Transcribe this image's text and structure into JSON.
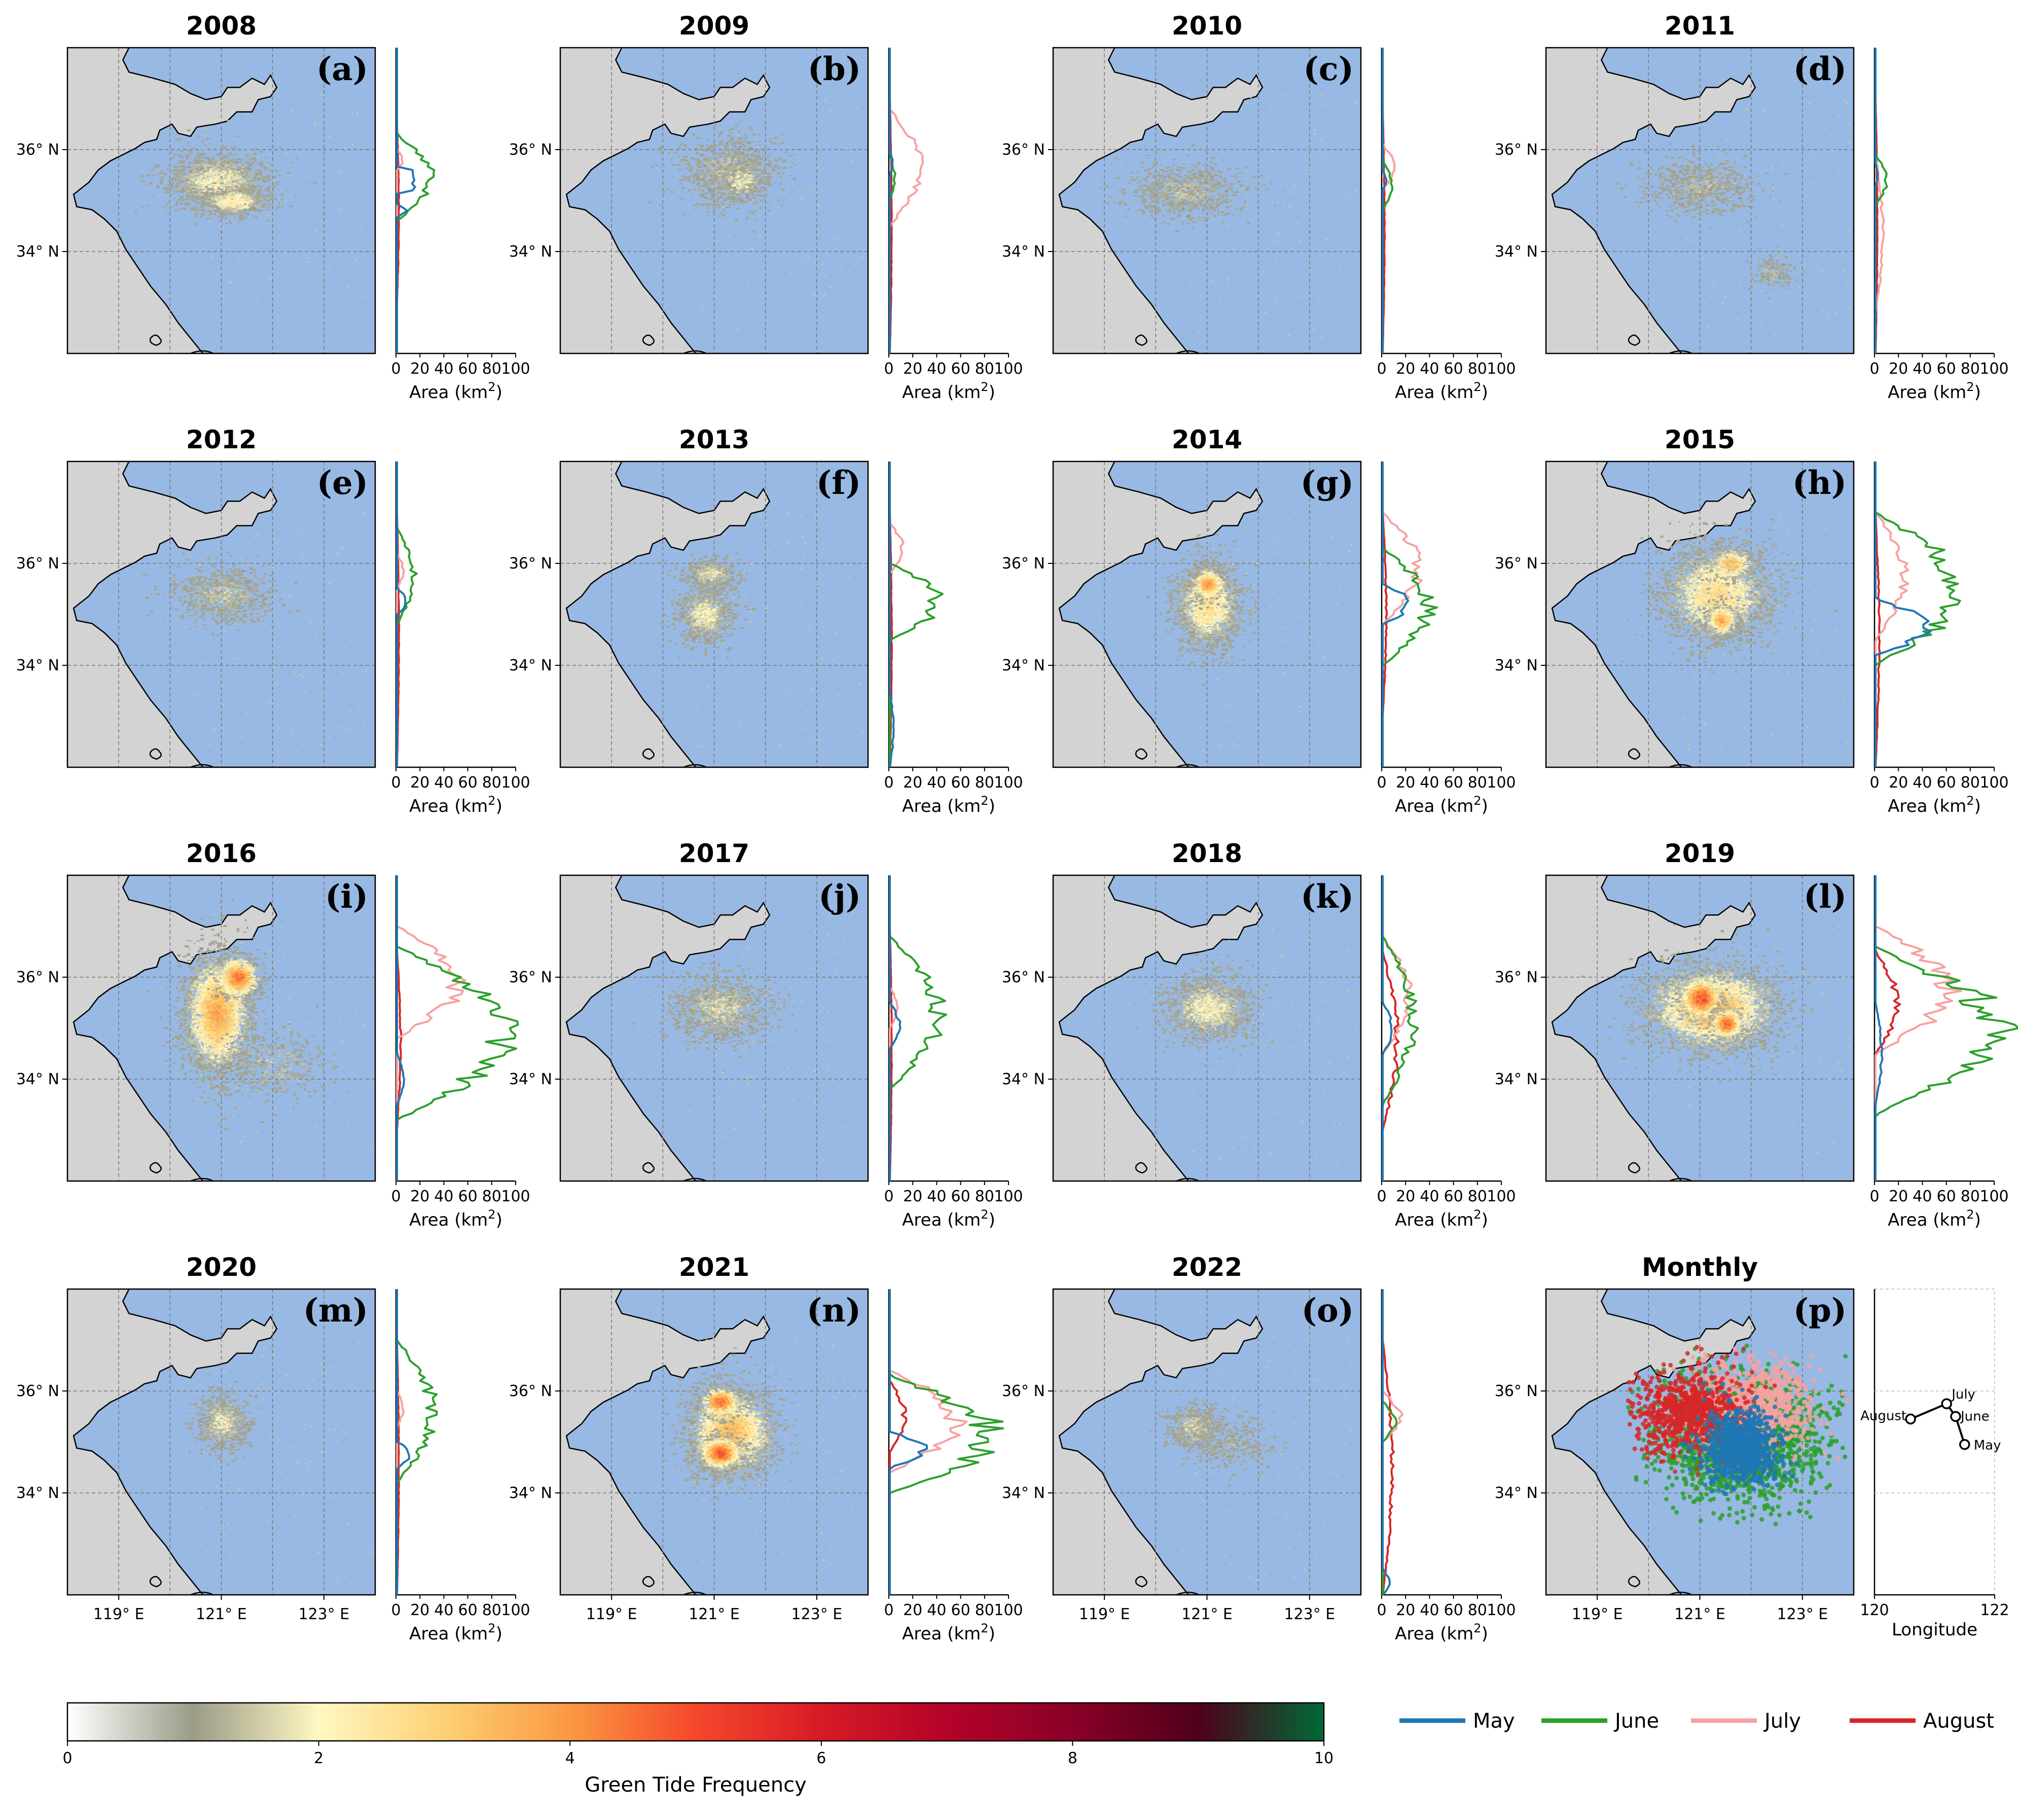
{
  "chart_data": {
    "type": "map_panels_with_latitude_area_profiles",
    "panels": [
      {
        "title": "2008",
        "label": "(a)",
        "blobs": [
          [
            120.9,
            35.4,
            0.9,
            0.5,
            1.6,
            1400
          ],
          [
            121.2,
            35.0,
            0.6,
            0.25,
            2.0,
            600
          ]
        ],
        "profiles": {
          "May": [
            [
              34.7,
              34.9,
              0,
              10
            ],
            [
              35.2,
              35.6,
              14,
              14
            ]
          ],
          "June": [
            [
              34.6,
              36.3,
              0,
              27
            ]
          ],
          "July": [
            [
              35.6,
              36.0,
              0,
              5
            ]
          ],
          "August": [
            [
              33.0,
              36.5,
              0,
              1.5
            ]
          ]
        }
      },
      {
        "title": "2009",
        "label": "(b)",
        "blobs": [
          [
            121.3,
            35.6,
            0.9,
            0.6,
            1.0,
            900
          ],
          [
            121.5,
            35.4,
            0.4,
            0.4,
            1.5,
            300
          ]
        ],
        "profiles": {
          "May": [
            [
              35.5,
              36.0,
              0,
              2
            ]
          ],
          "June": [
            [
              35.0,
              35.9,
              0,
              4
            ]
          ],
          "July": [
            [
              34.5,
              36.8,
              0,
              24
            ]
          ],
          "August": [
            [
              32.0,
              37.0,
              0,
              1.5
            ]
          ]
        }
      },
      {
        "title": "2010",
        "label": "(c)",
        "blobs": [
          [
            120.6,
            35.2,
            1.0,
            0.5,
            0.9,
            800
          ]
        ],
        "profiles": {
          "May": [
            [
              35.2,
              35.6,
              0,
              3
            ]
          ],
          "June": [
            [
              34.8,
              35.8,
              0,
              7
            ]
          ],
          "July": [
            [
              35.2,
              36.1,
              0,
              9
            ]
          ],
          "August": [
            [
              32.0,
              36.8,
              0,
              1.5
            ]
          ]
        }
      },
      {
        "title": "2011",
        "label": "(d)",
        "blobs": [
          [
            121.0,
            35.3,
            1.0,
            0.5,
            0.8,
            700
          ],
          [
            122.4,
            33.6,
            0.4,
            0.3,
            0.8,
            150
          ]
        ],
        "profiles": {
          "May": [
            [
              35.3,
              35.7,
              0,
              2
            ]
          ],
          "June": [
            [
              34.9,
              35.9,
              0,
              9
            ]
          ],
          "July": [
            [
              32.8,
              35.9,
              0,
              6
            ]
          ],
          "August": [
            [
              32.0,
              37.0,
              0,
              1.5
            ]
          ]
        }
      },
      {
        "title": "2012",
        "label": "(e)",
        "blobs": [
          [
            121.0,
            35.4,
            0.9,
            0.5,
            1.0,
            800
          ]
        ],
        "profiles": {
          "May": [
            [
              35.0,
              35.5,
              0,
              8
            ]
          ],
          "June": [
            [
              34.8,
              36.7,
              0,
              14
            ]
          ],
          "July": [
            [
              35.5,
              36.2,
              0,
              5
            ]
          ],
          "August": [
            [
              32.0,
              37.0,
              0,
              1.5
            ]
          ]
        }
      },
      {
        "title": "2013",
        "label": "(f)",
        "blobs": [
          [
            120.8,
            35.0,
            0.5,
            0.5,
            1.6,
            800
          ],
          [
            120.9,
            35.8,
            0.5,
            0.3,
            1.3,
            400
          ]
        ],
        "profiles": {
          "May": [
            [
              32.0,
              33.5,
              0,
              3
            ]
          ],
          "June": [
            [
              34.5,
              36.0,
              0,
              40
            ],
            [
              35.0,
              35.5,
              10,
              30
            ]
          ],
          "July": [
            [
              35.8,
              36.8,
              0,
              10
            ]
          ],
          "August": [
            [
              32.0,
              37.0,
              0,
              1.5
            ]
          ]
        }
      },
      {
        "title": "2014",
        "label": "(g)",
        "blobs": [
          [
            121.0,
            35.2,
            0.6,
            0.8,
            2.3,
            1800
          ],
          [
            121.0,
            35.6,
            0.3,
            0.3,
            3.5,
            400
          ]
        ],
        "profiles": {
          "May": [
            [
              34.8,
              35.6,
              0,
              22
            ]
          ],
          "June": [
            [
              34.0,
              36.3,
              0,
              38
            ]
          ],
          "July": [
            [
              34.8,
              37.0,
              0,
              30
            ]
          ],
          "August": [
            [
              33.0,
              37.0,
              0,
              3
            ]
          ]
        }
      },
      {
        "title": "2015",
        "label": "(h)",
        "blobs": [
          [
            121.3,
            35.4,
            1.0,
            0.9,
            2.3,
            2500
          ],
          [
            121.4,
            34.9,
            0.3,
            0.3,
            3.3,
            400
          ],
          [
            121.6,
            36.0,
            0.4,
            0.3,
            3.0,
            300
          ]
        ],
        "profiles": {
          "May": [
            [
              34.2,
              35.3,
              0,
              45
            ]
          ],
          "June": [
            [
              34.0,
              37.0,
              0,
              70
            ],
            [
              35.2,
              35.8,
              20,
              55
            ]
          ],
          "July": [
            [
              34.5,
              37.0,
              0,
              25
            ]
          ],
          "August": [
            [
              32.0,
              37.0,
              0,
              3
            ]
          ]
        }
      },
      {
        "title": "2016",
        "label": "(i)",
        "blobs": [
          [
            120.9,
            35.3,
            0.6,
            1.1,
            3.3,
            3000
          ],
          [
            121.3,
            36.0,
            0.4,
            0.4,
            4.0,
            600
          ],
          [
            122.0,
            34.3,
            1.0,
            0.6,
            1.0,
            400
          ]
        ],
        "profiles": {
          "May": [
            [
              33.5,
              34.5,
              0,
              5
            ]
          ],
          "June": [
            [
              33.2,
              36.6,
              0,
              90
            ],
            [
              34.8,
              35.6,
              20,
              80
            ]
          ],
          "July": [
            [
              34.8,
              37.0,
              0,
              50
            ]
          ],
          "August": [
            [
              33.0,
              36.5,
              0,
              3
            ]
          ]
        }
      },
      {
        "title": "2017",
        "label": "(j)",
        "blobs": [
          [
            121.1,
            35.4,
            0.9,
            0.6,
            1.2,
            1100
          ]
        ],
        "profiles": {
          "May": [
            [
              34.6,
              35.5,
              0,
              8
            ]
          ],
          "June": [
            [
              33.8,
              36.8,
              0,
              40
            ]
          ],
          "July": [
            [
              35.0,
              35.8,
              0,
              6
            ]
          ],
          "August": [
            [
              32.0,
              37.0,
              0,
              1.5
            ]
          ]
        }
      },
      {
        "title": "2018",
        "label": "(k)",
        "blobs": [
          [
            121.0,
            35.4,
            0.8,
            0.6,
            1.6,
            1300
          ]
        ],
        "profiles": {
          "May": [
            [
              34.5,
              35.5,
              0,
              8
            ]
          ],
          "June": [
            [
              33.5,
              36.8,
              0,
              25
            ]
          ],
          "July": [
            [
              34.5,
              36.8,
              0,
              22
            ]
          ],
          "August": [
            [
              33.0,
              36.5,
              0,
              12
            ]
          ]
        }
      },
      {
        "title": "2019",
        "label": "(l)",
        "blobs": [
          [
            121.2,
            35.4,
            1.2,
            0.8,
            3.2,
            3000
          ],
          [
            121.0,
            35.6,
            0.4,
            0.4,
            4.5,
            700
          ],
          [
            121.5,
            35.1,
            0.3,
            0.3,
            4.2,
            400
          ]
        ],
        "profiles": {
          "May": [
            [
              33.5,
              35.5,
              0,
              5
            ]
          ],
          "June": [
            [
              33.3,
              36.6,
              0,
              100
            ],
            [
              35.3,
              36.0,
              40,
              90
            ]
          ],
          "July": [
            [
              34.5,
              37.0,
              0,
              60
            ]
          ],
          "August": [
            [
              34.5,
              36.5,
              0,
              18
            ]
          ]
        }
      },
      {
        "title": "2020",
        "label": "(m)",
        "blobs": [
          [
            121.0,
            35.4,
            0.5,
            0.5,
            1.4,
            700
          ]
        ],
        "profiles": {
          "May": [
            [
              34.5,
              35.0,
              0,
              12
            ]
          ],
          "June": [
            [
              34.2,
              37.0,
              0,
              30
            ]
          ],
          "July": [
            [
              35.3,
              36.0,
              0,
              5
            ]
          ],
          "August": [
            [
              32.0,
              37.0,
              0,
              1.5
            ]
          ]
        }
      },
      {
        "title": "2021",
        "label": "(n)",
        "blobs": [
          [
            121.3,
            35.2,
            0.8,
            0.8,
            3.0,
            2500
          ],
          [
            121.1,
            34.8,
            0.4,
            0.3,
            4.5,
            700
          ],
          [
            121.1,
            35.8,
            0.4,
            0.3,
            4.0,
            400
          ]
        ],
        "profiles": {
          "May": [
            [
              34.5,
              35.2,
              0,
              28
            ]
          ],
          "June": [
            [
              34.0,
              36.3,
              0,
              85
            ],
            [
              34.5,
              35.6,
              40,
              80
            ]
          ],
          "July": [
            [
              34.4,
              36.4,
              0,
              55
            ]
          ],
          "August": [
            [
              34.8,
              36.2,
              0,
              12
            ]
          ]
        }
      },
      {
        "title": "2022",
        "label": "(o)",
        "blobs": [
          [
            120.7,
            35.3,
            0.5,
            0.4,
            1.2,
            500
          ],
          [
            121.5,
            35.0,
            0.8,
            0.5,
            0.7,
            300
          ]
        ],
        "profiles": {
          "May": [
            [
              32.0,
              32.5,
              0,
              6
            ]
          ],
          "June": [
            [
              35.0,
              35.8,
              0,
              10
            ]
          ],
          "July": [
            [
              35.0,
              36.0,
              0,
              14
            ]
          ],
          "August": [
            [
              32.0,
              37.0,
              0,
              8
            ]
          ]
        }
      }
    ],
    "monthly": {
      "title": "Monthly",
      "label": "(p)",
      "clouds": {
        "June": [
          [
            121.8,
            35.1,
            1.7,
            1.4,
            1800
          ]
        ],
        "July": [
          [
            122.0,
            35.7,
            1.4,
            1.0,
            900
          ]
        ],
        "August": [
          [
            120.8,
            35.6,
            1.2,
            0.9,
            800
          ]
        ],
        "May": [
          [
            121.8,
            34.9,
            0.8,
            0.8,
            900
          ]
        ]
      },
      "centroids": [
        {
          "month": "May",
          "lon": 121.5,
          "lat": 34.95
        },
        {
          "month": "June",
          "lon": 121.35,
          "lat": 35.5
        },
        {
          "month": "July",
          "lon": 121.2,
          "lat": 35.75
        },
        {
          "month": "August",
          "lon": 120.6,
          "lat": 35.45
        }
      ],
      "xlabel": "Longitude",
      "xticks": [
        "120",
        "122"
      ],
      "xlim": [
        120,
        122
      ]
    },
    "map_extent": {
      "lon": [
        118,
        124
      ],
      "lat": [
        32,
        38
      ]
    },
    "lon_ticks": [
      "119° E",
      "121° E",
      "123° E"
    ],
    "lat_ticks": [
      "36° N",
      "34° N"
    ],
    "area_axis": {
      "xlabel": "Area (km",
      "xlabel_sup": "2",
      "xlabel_close": ")",
      "ticks": [
        "0",
        "20",
        "40",
        "60",
        "80",
        "100"
      ],
      "xlim": [
        0,
        100
      ]
    },
    "colorbar": {
      "label": "Green Tide Frequency",
      "ticks": [
        "0",
        "2",
        "4",
        "6",
        "8",
        "10"
      ],
      "range": [
        0,
        10
      ],
      "stops": [
        "#ffffff",
        "#9b9b88",
        "#fff8c2",
        "#fdd074",
        "#fb9842",
        "#f5472b",
        "#d71a26",
        "#b40329",
        "#8a0027",
        "#4f001a",
        "#006837"
      ]
    },
    "legend": [
      {
        "label": "May",
        "color": "#1f77b4"
      },
      {
        "label": "June",
        "color": "#2ca02c"
      },
      {
        "label": "July",
        "color": "#f7a1a1"
      },
      {
        "label": "August",
        "color": "#d62728"
      }
    ],
    "colors": {
      "land": "#d3d3d3",
      "sea": "#98b9e3",
      "coast": "#000000"
    }
  }
}
